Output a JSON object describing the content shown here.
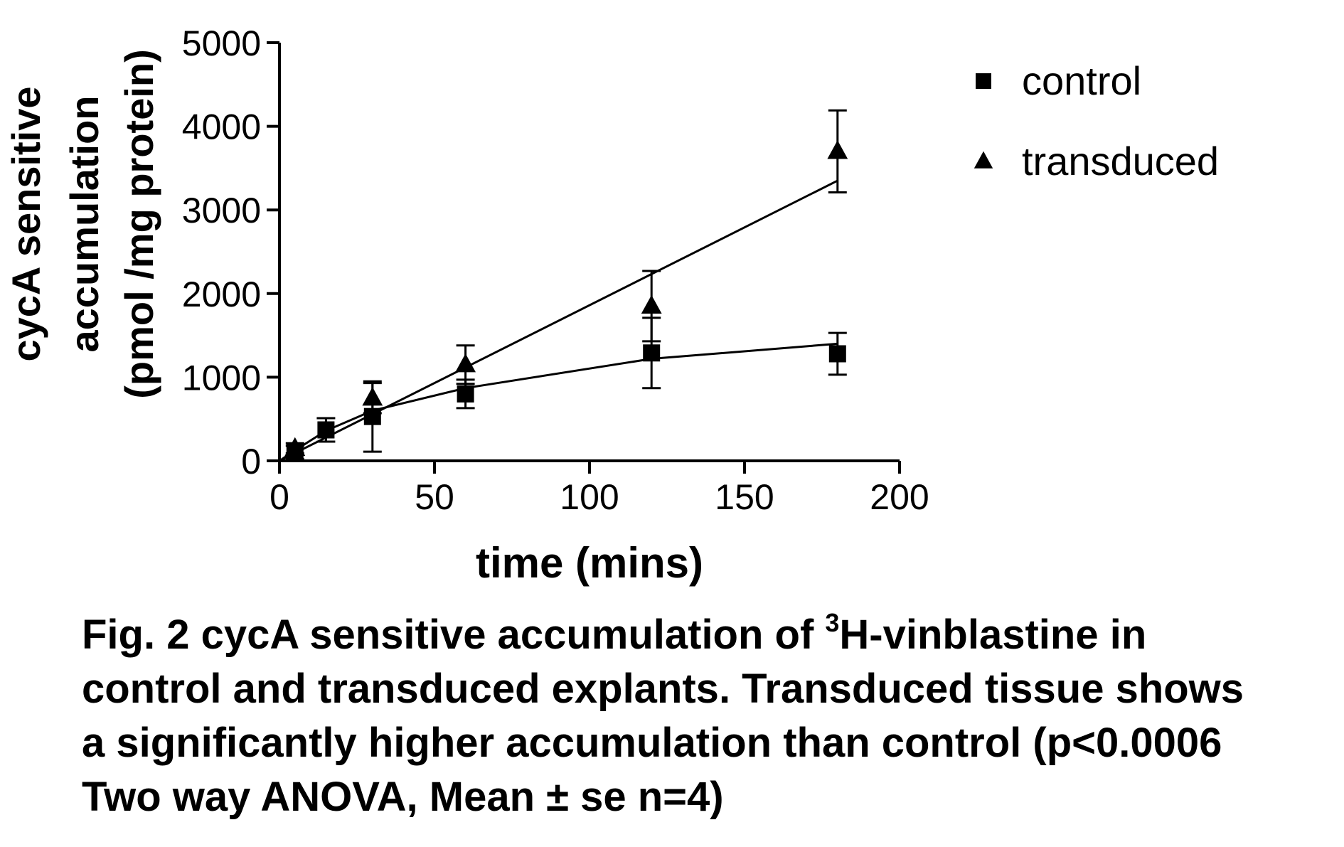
{
  "chart_data": {
    "type": "scatter",
    "xlabel": "time (mins)",
    "ylabel_lines": [
      "cycA sensitive",
      "accumulation",
      "(pmol /mg protein)"
    ],
    "xlim": [
      0,
      200
    ],
    "ylim": [
      0,
      5000
    ],
    "x_ticks": [
      0,
      50,
      100,
      150,
      200
    ],
    "y_ticks": [
      0,
      1000,
      2000,
      3000,
      4000,
      5000
    ],
    "x_tick_labels": [
      "0",
      "50",
      "100",
      "150",
      "200"
    ],
    "y_tick_labels": [
      "0",
      "1000",
      "2000",
      "3000",
      "4000",
      "5000"
    ],
    "grid": false,
    "legend_position": "top-right",
    "series": [
      {
        "name": "control",
        "marker": "square",
        "color": "#000000",
        "x": [
          5,
          15,
          30,
          60,
          120,
          180
        ],
        "y": [
          100,
          370,
          530,
          800,
          1290,
          1280
        ],
        "err": [
          80,
          140,
          420,
          170,
          420,
          250
        ],
        "fit": "hyperbolic",
        "fit_points": [
          [
            0,
            0
          ],
          [
            5,
            125
          ],
          [
            15,
            360
          ],
          [
            30,
            600
          ],
          [
            60,
            870
          ],
          [
            120,
            1220
          ],
          [
            180,
            1400
          ]
        ]
      },
      {
        "name": "transduced",
        "marker": "triangle",
        "color": "#000000",
        "x": [
          5,
          30,
          60,
          120,
          180
        ],
        "y": [
          150,
          750,
          1150,
          1850,
          3700
        ],
        "err": [
          60,
          180,
          230,
          420,
          490
        ],
        "fit": "linear",
        "fit_points": [
          [
            0,
            0
          ],
          [
            180,
            3350
          ]
        ]
      }
    ]
  },
  "caption": {
    "line1_before_sup": "Fig. 2 cycA sensitive accumulation of ",
    "line1_sup": "3",
    "line1_after_sup": "H-vinblastine in",
    "line2": "control and transduced explants. Transduced tissue shows",
    "line3": "a significantly higher accumulation than control (p<0.0006",
    "line4": "Two way ANOVA, Mean ± se n=4)"
  }
}
